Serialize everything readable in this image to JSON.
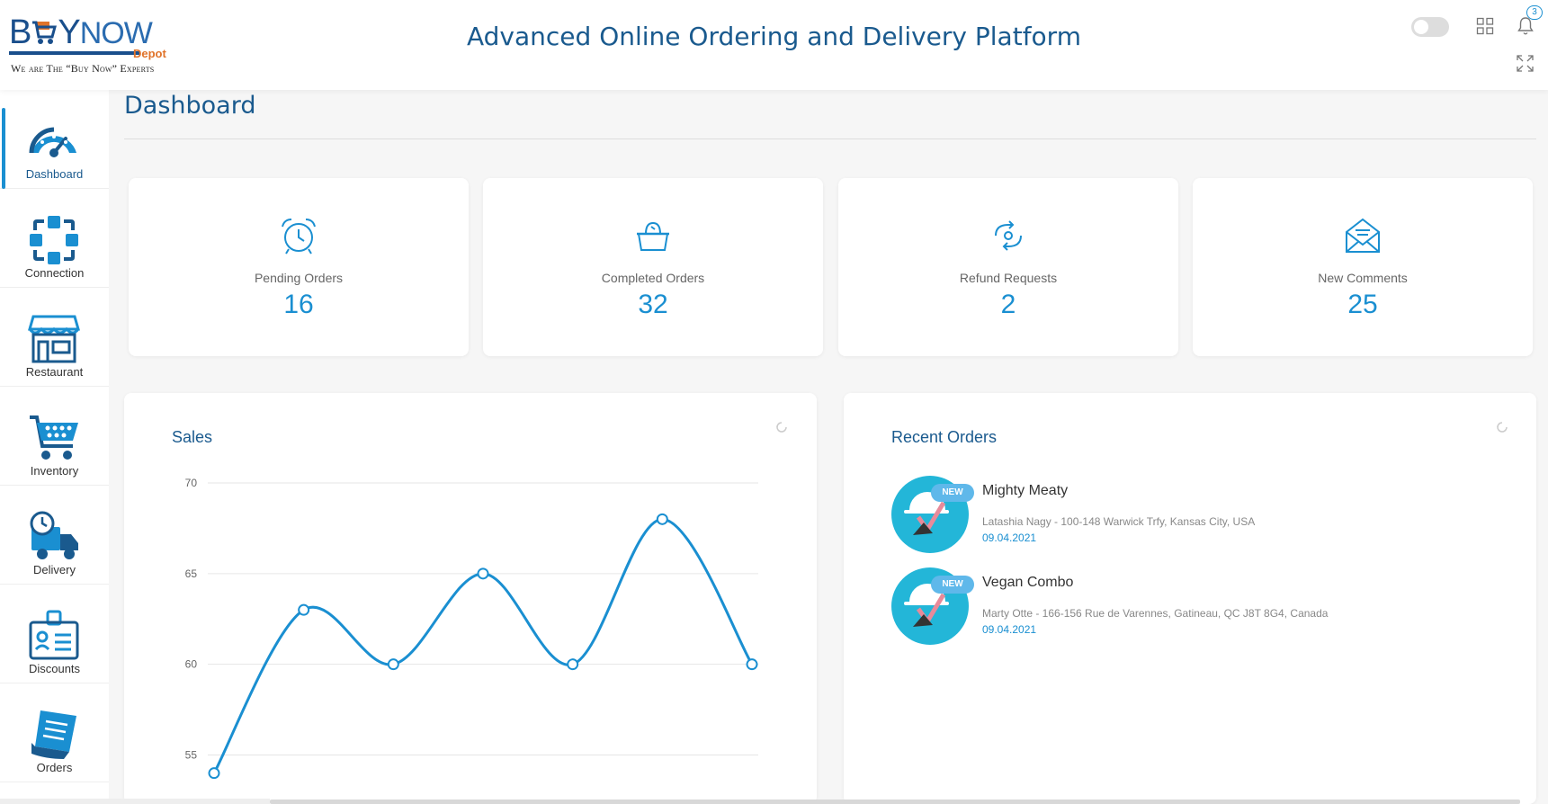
{
  "header": {
    "logo_main_b": "B",
    "logo_main_y": "Y",
    "logo_main_now": "NOW",
    "logo_depot": "Depot",
    "logo_tagline": "We are The “Buy Now” Experts",
    "title": "Advanced Online Ordering and Delivery Platform",
    "notification_count": "3",
    "icons": [
      "toggle-switch",
      "grid-icon",
      "bell-icon",
      "expand-icon"
    ]
  },
  "sidebar": {
    "items": [
      {
        "label": "Dashboard",
        "icon": "dashboard-gauge-icon",
        "active": true
      },
      {
        "label": "Connection",
        "icon": "connection-icon"
      },
      {
        "label": "Restaurant",
        "icon": "restaurant-icon"
      },
      {
        "label": "Inventory",
        "icon": "cart-icon"
      },
      {
        "label": "Delivery",
        "icon": "delivery-truck-icon"
      },
      {
        "label": "Discounts",
        "icon": "discount-card-icon"
      },
      {
        "label": "Orders",
        "icon": "orders-list-icon"
      }
    ]
  },
  "page": {
    "title": "Dashboard"
  },
  "stats": [
    {
      "label": "Pending Orders",
      "value": "16",
      "icon": "alarm-clock-icon"
    },
    {
      "label": "Completed Orders",
      "value": "32",
      "icon": "basket-icon"
    },
    {
      "label": "Refund Requests",
      "value": "2",
      "icon": "refund-icon"
    },
    {
      "label": "New Comments",
      "value": "25",
      "icon": "envelope-icon"
    }
  ],
  "sales": {
    "title": "Sales",
    "chart_data": {
      "type": "line",
      "title": "Sales",
      "x": [
        1,
        2,
        3,
        4,
        5,
        6,
        7
      ],
      "values": [
        54,
        63,
        60,
        65,
        60,
        68,
        60
      ],
      "yticks": [
        55,
        60,
        65,
        70
      ],
      "ylim": [
        52,
        70
      ],
      "grid": true,
      "color": "#1a8fd1"
    }
  },
  "recent_orders": {
    "title": "Recent Orders",
    "badge": "NEW",
    "items": [
      {
        "name": "Mighty Meaty",
        "address": "Latashia Nagy - 100-148 Warwick Trfy, Kansas City, USA",
        "date": "09.04.2021"
      },
      {
        "name": "Vegan Combo",
        "address": "Marty Otte - 166-156 Rue de Varennes, Gatineau, QC J8T 8G4, Canada",
        "date": "09.04.2021"
      }
    ]
  },
  "colors": {
    "accent": "#1a8fd1",
    "title": "#1a5a8e",
    "badge": "#5fb8ea",
    "avatar": "#23b6d8"
  }
}
